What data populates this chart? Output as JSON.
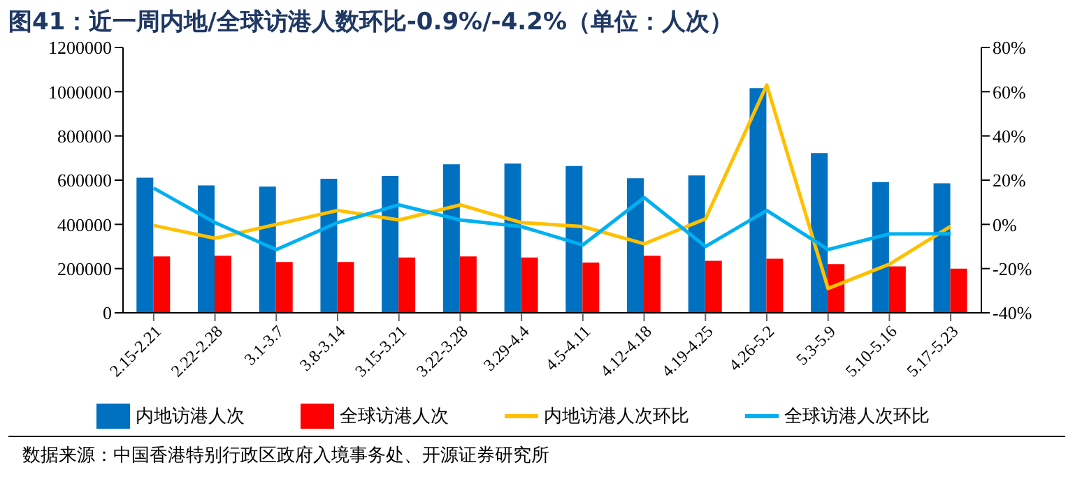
{
  "chart_data": {
    "type": "bar",
    "title": "图41：近一周内地/全球访港人数环比-0.9%/-4.2%（单位：人次）",
    "categories": [
      "2.15-2.21",
      "2.22-2.28",
      "3.1-3.7",
      "3.8-3.14",
      "3.15-3.21",
      "3.22-3.28",
      "3.29-4.4",
      "4.5-4.11",
      "4.12-4.18",
      "4.19-4.25",
      "4.26-5.2",
      "5.3-5.9",
      "5.10-5.16",
      "5.17-5.23"
    ],
    "series": [
      {
        "name": "内地访港人次",
        "color": "#0070c0",
        "values": [
          611000,
          576000,
          571000,
          606000,
          619000,
          672000,
          675000,
          664000,
          609000,
          621000,
          1016000,
          722000,
          591000,
          586000
        ]
      },
      {
        "name": "全球访港人次",
        "color": "#ff0000",
        "values": [
          255000,
          258000,
          230000,
          230000,
          250000,
          255000,
          250000,
          227000,
          258000,
          235000,
          245000,
          220000,
          210000,
          200000
        ]
      },
      {
        "name": "内地访港人次环比",
        "type": "line",
        "axis": "y2",
        "color": "#ffc000",
        "values": [
          -0.5,
          -6.3,
          0,
          6.3,
          2,
          8.8,
          0.8,
          -1,
          -8.8,
          2.5,
          63,
          -29,
          -18,
          -0.9
        ]
      },
      {
        "name": "全球访港人次环比",
        "type": "line",
        "axis": "y2",
        "color": "#00b0f0",
        "values": [
          16.4,
          0.8,
          -11.4,
          0.8,
          8.8,
          2,
          -1,
          -9.3,
          12.1,
          -10,
          6.3,
          -11.4,
          -4.3,
          -4.2
        ]
      }
    ],
    "ylim": [
      0,
      1200000
    ],
    "yticks": [
      0,
      200000,
      400000,
      600000,
      800000,
      1000000,
      1200000
    ],
    "y2lim": [
      -40,
      80
    ],
    "y2ticks": [
      {
        "value": -40,
        "label": "-40%"
      },
      {
        "value": -20,
        "label": "-20%"
      },
      {
        "value": 0,
        "label": "0%"
      },
      {
        "value": 20,
        "label": "20%"
      },
      {
        "value": 40,
        "label": "40%"
      },
      {
        "value": 60,
        "label": "60%"
      },
      {
        "value": 80,
        "label": "80%"
      }
    ],
    "grid": false,
    "legend": "bottom",
    "marker": "none",
    "annotations": [
      "数据来源：中国香港特别行政区政府入境事务处、开源证券研究所"
    ]
  }
}
